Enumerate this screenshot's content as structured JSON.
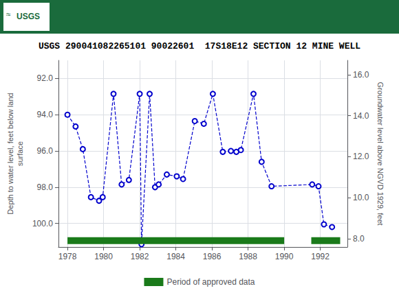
{
  "chart_data": {
    "type": "line",
    "title": "USGS 290041082265101 90022601  17S18E12 SECTION 12 MINE WELL",
    "annotations": [
      {
        "text": "≈",
        "color": "#1a6b3c"
      },
      {
        "text": "USGS",
        "color": "#1a6b3c"
      }
    ],
    "ylabel": "Depth to water level, feet below land\nsurface",
    "y2label": "Groundwater level above NGVD 1929, feet",
    "xlim": [
      1977.5,
      1993.5
    ],
    "xticks": [
      1978,
      1980,
      1982,
      1984,
      1986,
      1988,
      1990,
      1992
    ],
    "ylim": [
      101.3,
      91.0
    ],
    "yticks": [
      {
        "value": 92.0,
        "label": "92.0"
      },
      {
        "value": 94.0,
        "label": "94.0"
      },
      {
        "value": 96.0,
        "label": "96.0"
      },
      {
        "value": 98.0,
        "label": "98.0"
      },
      {
        "value": 100.0,
        "label": "100.0"
      }
    ],
    "y2lim": [
      7.6,
      16.7
    ],
    "y2ticks": [
      {
        "value": 8.0,
        "label": "8.0"
      },
      {
        "value": 10.0,
        "label": "10.0"
      },
      {
        "value": 12.0,
        "label": "12.0"
      },
      {
        "value": 14.0,
        "label": "14.0"
      },
      {
        "value": 16.0,
        "label": "16.0"
      }
    ],
    "grid": true,
    "legend": "bottom",
    "series": [
      {
        "type": "line",
        "color": "#0000CC",
        "marker": "circle",
        "line_style": "dashed",
        "x": [
          1978.0,
          1978.45,
          1978.85,
          1979.3,
          1979.75,
          1979.95,
          1980.55,
          1981.0,
          1981.4,
          1982.0,
          1982.1,
          1982.55,
          1982.85,
          1983.05,
          1983.5,
          1984.05,
          1984.4,
          1985.05,
          1985.55,
          1986.05,
          1986.6,
          1987.05,
          1987.35,
          1987.6,
          1988.3,
          1988.75,
          1989.3,
          1991.55,
          1991.9,
          1992.2,
          1992.65
        ],
        "values": [
          94.0,
          94.65,
          95.9,
          98.55,
          98.75,
          98.55,
          92.85,
          97.85,
          97.6,
          92.85,
          101.15,
          92.85,
          98.0,
          97.85,
          97.3,
          97.4,
          97.55,
          94.35,
          94.5,
          92.85,
          96.05,
          96.0,
          96.05,
          95.95,
          92.85,
          96.6,
          97.95,
          97.85,
          97.95,
          100.05,
          100.2
        ]
      },
      {
        "type": "bar",
        "orientation": "horizontal",
        "name": "Period of approved data",
        "color": "#1a7a1a",
        "ranges": [
          [
            1978.0,
            1990.0
          ],
          [
            1991.5,
            1993.1
          ]
        ],
        "y": 100.95
      }
    ]
  }
}
